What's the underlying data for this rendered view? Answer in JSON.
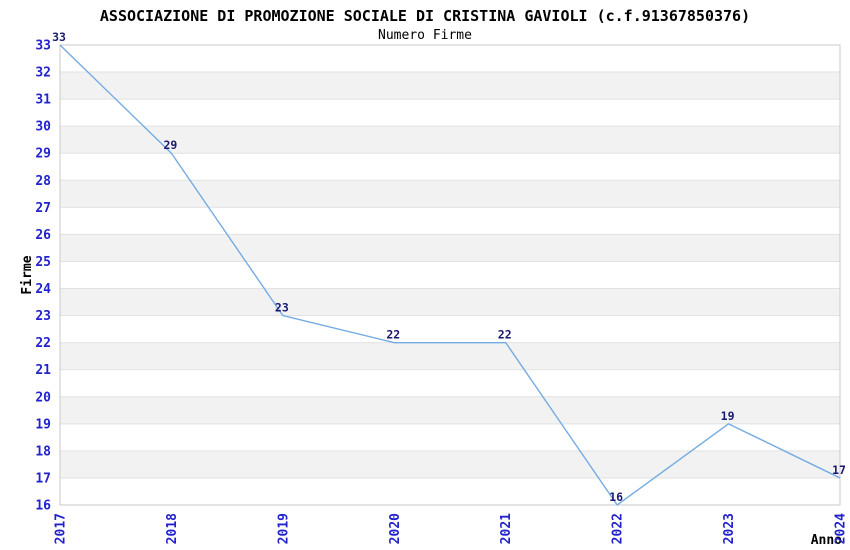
{
  "chart_data": {
    "type": "line",
    "title": "ASSOCIAZIONE DI PROMOZIONE SOCIALE DI CRISTINA GAVIOLI (c.f.91367850376)",
    "subtitle": "Numero Firme",
    "xlabel": "Anno",
    "ylabel": "Firme",
    "x": [
      "2017",
      "2018",
      "2019",
      "2020",
      "2021",
      "2022",
      "2023",
      "2024"
    ],
    "values": [
      33,
      29,
      23,
      22,
      22,
      16,
      19,
      17
    ],
    "point_labels": [
      "33",
      "29",
      "23",
      "22",
      "22",
      "16",
      "19",
      "17"
    ],
    "ylim": [
      16,
      33
    ],
    "yticks": [
      16,
      17,
      18,
      19,
      20,
      21,
      22,
      23,
      24,
      25,
      26,
      27,
      28,
      29,
      30,
      31,
      32,
      33
    ],
    "ytick_step": 1,
    "legend": "none",
    "grid": "horizontal gridlines at every integer, alternating gray bands",
    "colors": {
      "line": "#74ACE2",
      "tick_label": "#2222CC",
      "point_label": "#191970",
      "band": "#F2F2F2",
      "grid_line": "#E2E2E2",
      "border": "#C9C9C9",
      "background": "#FFFFFF",
      "text": "#000000"
    }
  }
}
